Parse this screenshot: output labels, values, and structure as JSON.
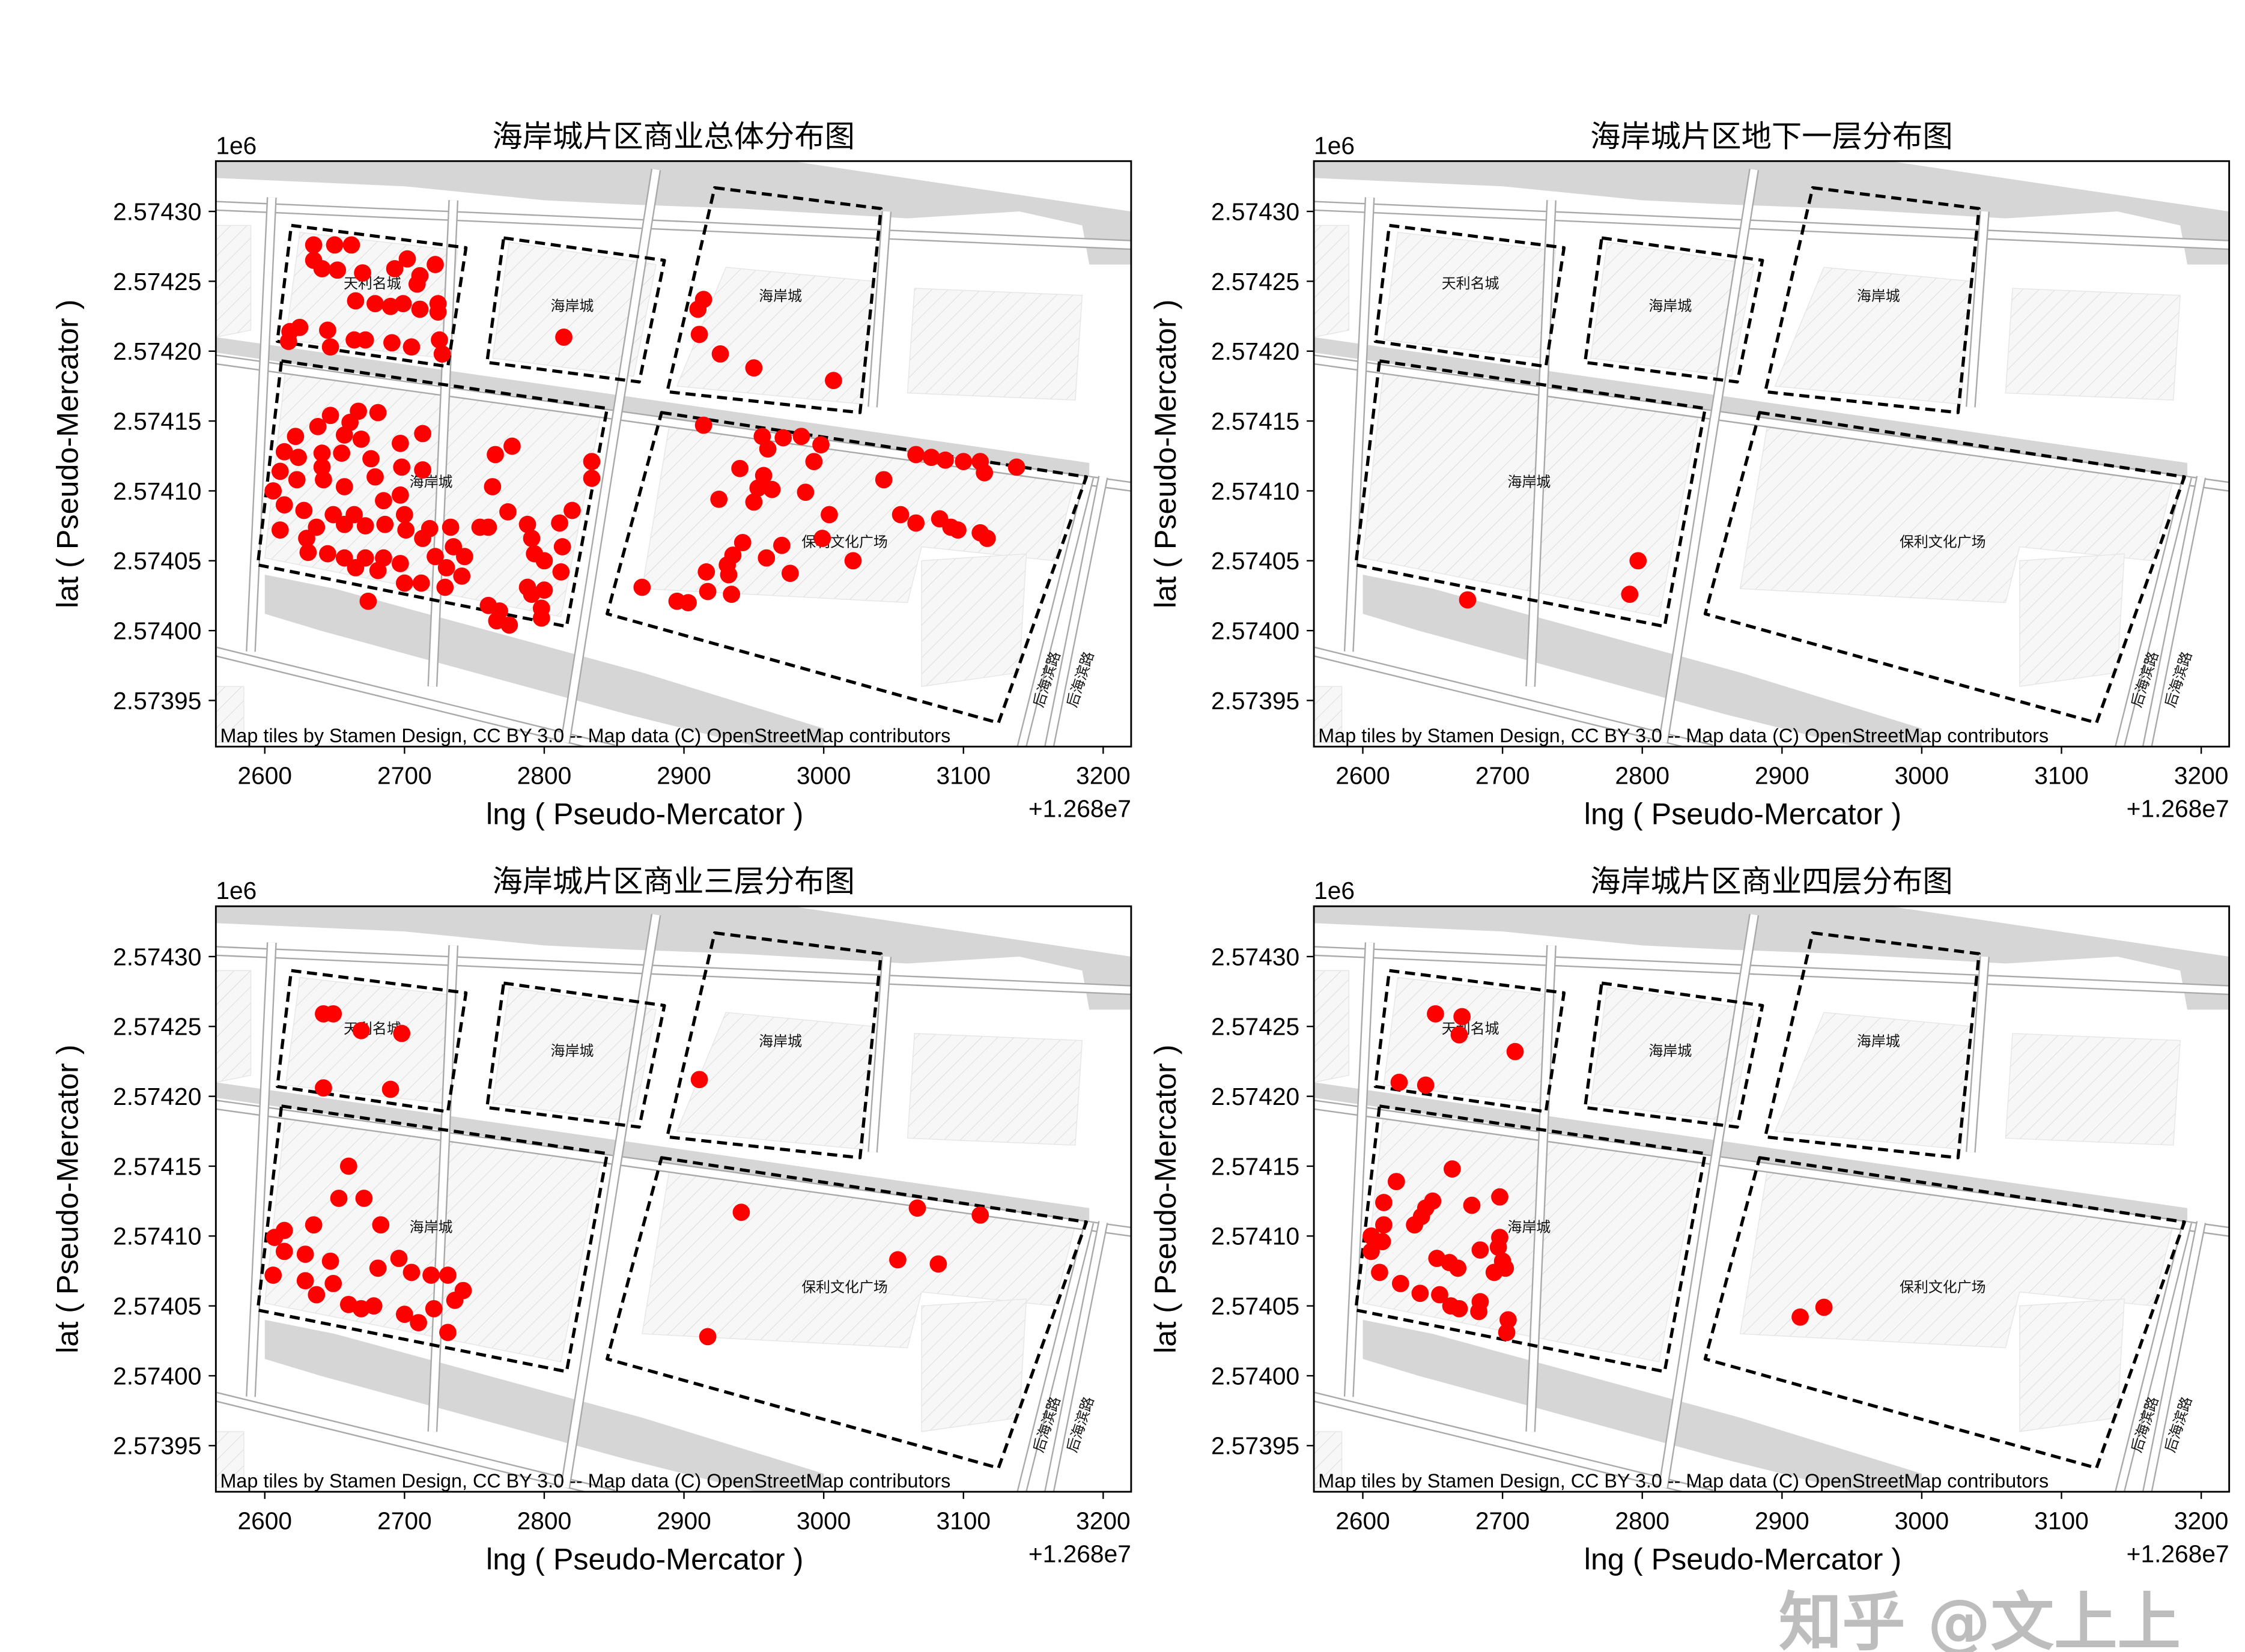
{
  "figure": {
    "watermark": "知乎 @文上上",
    "marker_color": "#ff0000"
  },
  "basemap": {
    "attribution": "Map tiles by Stamen Design, CC BY 3.0 -- Map data (C) OpenStreetMap contributors",
    "labels": [
      "天利名城",
      "海岸城",
      "海岸城",
      "海岸城",
      "保利文化广场",
      "后海滨路",
      "后海滨路"
    ],
    "boundary_style": "black dashed"
  },
  "chart_data": [
    {
      "type": "scatter",
      "title": "海岸城片区商业总体分布图",
      "xlabel": "lng ( Pseudo-Mercator )",
      "ylabel": "lat ( Pseudo-Mercator )",
      "x_offset_label": "+1.268e7",
      "y_multiplier_label": "1e6",
      "xlim": [
        2565,
        3220
      ],
      "ylim": [
        2.573917,
        2.574336
      ],
      "xticks": [
        "2600",
        "2700",
        "2800",
        "2900",
        "3000",
        "3100",
        "3200"
      ],
      "yticks": [
        "2.57395",
        "2.57400",
        "2.57405",
        "2.57410",
        "2.57415",
        "2.57420",
        "2.57425",
        "2.57430"
      ],
      "grid": false,
      "points": [
        [
          2635,
          2.574276
        ],
        [
          2650,
          2.574276
        ],
        [
          2662,
          2.574276
        ],
        [
          2635,
          2.574265
        ],
        [
          2641,
          2.574259
        ],
        [
          2652,
          2.574258
        ],
        [
          2670,
          2.574256
        ],
        [
          2693,
          2.574259
        ],
        [
          2702,
          2.574266
        ],
        [
          2722,
          2.574262
        ],
        [
          2711,
          2.574254
        ],
        [
          2709,
          2.574248
        ],
        [
          2665,
          2.574236
        ],
        [
          2679,
          2.574234
        ],
        [
          2690,
          2.574232
        ],
        [
          2699,
          2.574234
        ],
        [
          2711,
          2.57423
        ],
        [
          2724,
          2.574234
        ],
        [
          2724,
          2.574228
        ],
        [
          2618,
          2.574214
        ],
        [
          2625,
          2.574217
        ],
        [
          2645,
          2.574215
        ],
        [
          2647,
          2.574203
        ],
        [
          2664,
          2.574208
        ],
        [
          2672,
          2.574208
        ],
        [
          2691,
          2.574206
        ],
        [
          2705,
          2.574203
        ],
        [
          2725,
          2.574208
        ],
        [
          2727,
          2.574198
        ],
        [
          2617,
          2.574207
        ],
        [
          2814,
          2.57421
        ],
        [
          2914,
          2.574237
        ],
        [
          2910,
          2.57423
        ],
        [
          2911,
          2.574212
        ],
        [
          2926,
          2.574198
        ],
        [
          2950,
          2.574188
        ],
        [
          3007,
          2.574179
        ],
        [
          2647,
          2.574154
        ],
        [
          2667,
          2.574157
        ],
        [
          2681,
          2.574156
        ],
        [
          2661,
          2.574149
        ],
        [
          2638,
          2.574146
        ],
        [
          2657,
          2.57414
        ],
        [
          2622,
          2.574139
        ],
        [
          2614,
          2.574128
        ],
        [
          2624,
          2.574124
        ],
        [
          2641,
          2.574127
        ],
        [
          2655,
          2.574127
        ],
        [
          2669,
          2.574137
        ],
        [
          2697,
          2.574134
        ],
        [
          2713,
          2.574141
        ],
        [
          2676,
          2.574123
        ],
        [
          2698,
          2.574117
        ],
        [
          2713,
          2.574115
        ],
        [
          2611,
          2.574114
        ],
        [
          2641,
          2.574117
        ],
        [
          2623,
          2.574108
        ],
        [
          2642,
          2.574108
        ],
        [
          2657,
          2.574103
        ],
        [
          2679,
          2.57411
        ],
        [
          2606,
          2.5741
        ],
        [
          2614,
          2.57409
        ],
        [
          2628,
          2.574086
        ],
        [
          2649,
          2.574083
        ],
        [
          2664,
          2.574083
        ],
        [
          2685,
          2.574093
        ],
        [
          2697,
          2.574097
        ],
        [
          2700,
          2.574083
        ],
        [
          2611,
          2.574072
        ],
        [
          2637,
          2.574074
        ],
        [
          2657,
          2.574076
        ],
        [
          2672,
          2.574075
        ],
        [
          2686,
          2.574076
        ],
        [
          2701,
          2.574072
        ],
        [
          2718,
          2.574073
        ],
        [
          2733,
          2.574074
        ],
        [
          2713,
          2.574066
        ],
        [
          2630,
          2.574066
        ],
        [
          2631,
          2.574056
        ],
        [
          2645,
          2.574055
        ],
        [
          2657,
          2.574052
        ],
        [
          2672,
          2.574052
        ],
        [
          2685,
          2.574052
        ],
        [
          2697,
          2.574048
        ],
        [
          2665,
          2.574045
        ],
        [
          2681,
          2.574043
        ],
        [
          2700,
          2.574034
        ],
        [
          2712,
          2.574034
        ],
        [
          2722,
          2.574053
        ],
        [
          2730,
          2.574045
        ],
        [
          2735,
          2.57406
        ],
        [
          2743,
          2.574053
        ],
        [
          2729,
          2.574031
        ],
        [
          2741,
          2.574039
        ],
        [
          2674,
          2.574021
        ],
        [
          2754,
          2.574074
        ],
        [
          2760,
          2.574074
        ],
        [
          2774,
          2.574085
        ],
        [
          2763,
          2.574103
        ],
        [
          2765,
          2.574126
        ],
        [
          2777,
          2.574132
        ],
        [
          2788,
          2.574076
        ],
        [
          2791,
          2.574066
        ],
        [
          2793,
          2.574055
        ],
        [
          2800,
          2.57405
        ],
        [
          2813,
          2.57406
        ],
        [
          2811,
          2.574077
        ],
        [
          2820,
          2.574086
        ],
        [
          2834,
          2.574121
        ],
        [
          2834,
          2.574109
        ],
        [
          2812,
          2.574042
        ],
        [
          2788,
          2.574031
        ],
        [
          2800,
          2.574029
        ],
        [
          2791,
          2.574026
        ],
        [
          2798,
          2.574016
        ],
        [
          2760,
          2.574018
        ],
        [
          2768,
          2.574014
        ],
        [
          2775,
          2.574004
        ],
        [
          2766,
          2.574007
        ],
        [
          2798,
          2.574009
        ],
        [
          2914,
          2.574147
        ],
        [
          2956,
          2.574139
        ],
        [
          2960,
          2.57413
        ],
        [
          2971,
          2.574138
        ],
        [
          2984,
          2.574139
        ],
        [
          2998,
          2.574133
        ],
        [
          2993,
          2.574121
        ],
        [
          2940,
          2.574116
        ],
        [
          2957,
          2.574111
        ],
        [
          2953,
          2.574102
        ],
        [
          2963,
          2.574101
        ],
        [
          2987,
          2.574099
        ],
        [
          2925,
          2.574094
        ],
        [
          2950,
          2.574092
        ],
        [
          3004,
          2.574083
        ],
        [
          2942,
          2.574063
        ],
        [
          2935,
          2.574054
        ],
        [
          2970,
          2.574061
        ],
        [
          2999,
          2.574066
        ],
        [
          2959,
          2.574052
        ],
        [
          2931,
          2.574047
        ],
        [
          2916,
          2.574042
        ],
        [
          2932,
          2.57404
        ],
        [
          2976,
          2.574041
        ],
        [
          3021,
          2.57405
        ],
        [
          2870,
          2.574031
        ],
        [
          2895,
          2.574021
        ],
        [
          2903,
          2.57402
        ],
        [
          2917,
          2.574028
        ],
        [
          2934,
          2.574026
        ],
        [
          3043,
          2.574108
        ],
        [
          3066,
          2.574126
        ],
        [
          3077,
          2.574124
        ],
        [
          3087,
          2.574122
        ],
        [
          3100,
          2.574121
        ],
        [
          3112,
          2.574121
        ],
        [
          3115,
          2.574113
        ],
        [
          3138,
          2.574117
        ],
        [
          3055,
          2.574083
        ],
        [
          3066,
          2.574077
        ],
        [
          3083,
          2.57408
        ],
        [
          3096,
          2.574072
        ],
        [
          3091,
          2.574074
        ],
        [
          3112,
          2.57407
        ],
        [
          3117,
          2.574066
        ]
      ]
    },
    {
      "type": "scatter",
      "title": "海岸城片区地下一层分布图",
      "xlabel": "lng ( Pseudo-Mercator )",
      "ylabel": "lat ( Pseudo-Mercator )",
      "x_offset_label": "+1.268e7",
      "y_multiplier_label": "1e6",
      "xlim": [
        2565,
        3220
      ],
      "ylim": [
        2.573917,
        2.574336
      ],
      "xticks": [
        "2600",
        "2700",
        "2800",
        "2900",
        "3000",
        "3100",
        "3200"
      ],
      "yticks": [
        "2.57395",
        "2.57400",
        "2.57405",
        "2.57410",
        "2.57415",
        "2.57420",
        "2.57425",
        "2.57430"
      ],
      "grid": false,
      "points": [
        [
          2675,
          2.574022
        ],
        [
          2797,
          2.57405
        ],
        [
          2791,
          2.574026
        ]
      ]
    },
    {
      "type": "scatter",
      "title": "海岸城片区商业三层分布图",
      "xlabel": "lng ( Pseudo-Mercator )",
      "ylabel": "lat ( Pseudo-Mercator )",
      "x_offset_label": "+1.268e7",
      "y_multiplier_label": "1e6",
      "xlim": [
        2565,
        3220
      ],
      "ylim": [
        2.573917,
        2.574336
      ],
      "xticks": [
        "2600",
        "2700",
        "2800",
        "2900",
        "3000",
        "3100",
        "3200"
      ],
      "yticks": [
        "2.57395",
        "2.57400",
        "2.57405",
        "2.57410",
        "2.57415",
        "2.57420",
        "2.57425",
        "2.57430"
      ],
      "grid": false,
      "points": [
        [
          2642,
          2.574259
        ],
        [
          2649,
          2.574259
        ],
        [
          2669,
          2.574247
        ],
        [
          2698,
          2.574245
        ],
        [
          2642,
          2.574206
        ],
        [
          2690,
          2.574205
        ],
        [
          2911,
          2.574212
        ],
        [
          2660,
          2.57415
        ],
        [
          2653,
          2.574127
        ],
        [
          2635,
          2.574108
        ],
        [
          2607,
          2.574099
        ],
        [
          2614,
          2.574104
        ],
        [
          2614,
          2.574089
        ],
        [
          2671,
          2.574127
        ],
        [
          2683,
          2.574108
        ],
        [
          2606,
          2.574072
        ],
        [
          2629,
          2.574087
        ],
        [
          2647,
          2.574082
        ],
        [
          2629,
          2.574068
        ],
        [
          2649,
          2.574066
        ],
        [
          2681,
          2.574077
        ],
        [
          2696,
          2.574084
        ],
        [
          2705,
          2.574074
        ],
        [
          2719,
          2.574072
        ],
        [
          2731,
          2.574072
        ],
        [
          2742,
          2.574061
        ],
        [
          2736,
          2.574054
        ],
        [
          2721,
          2.574048
        ],
        [
          2700,
          2.574044
        ],
        [
          2710,
          2.574038
        ],
        [
          2731,
          2.574031
        ],
        [
          2678,
          2.57405
        ],
        [
          2660,
          2.574051
        ],
        [
          2669,
          2.574048
        ],
        [
          2637,
          2.574058
        ],
        [
          2941,
          2.574117
        ],
        [
          3067,
          2.57412
        ],
        [
          3112,
          2.574115
        ],
        [
          3053,
          2.574083
        ],
        [
          3082,
          2.57408
        ],
        [
          2917,
          2.574028
        ]
      ]
    },
    {
      "type": "scatter",
      "title": "海岸城片区商业四层分布图",
      "xlabel": "lng ( Pseudo-Mercator )",
      "ylabel": "lat ( Pseudo-Mercator )",
      "x_offset_label": "+1.268e7",
      "y_multiplier_label": "1e6",
      "xlim": [
        2565,
        3220
      ],
      "ylim": [
        2.573917,
        2.574336
      ],
      "xticks": [
        "2600",
        "2700",
        "2800",
        "2900",
        "3000",
        "3100",
        "3200"
      ],
      "yticks": [
        "2.57395",
        "2.57400",
        "2.57405",
        "2.57410",
        "2.57415",
        "2.57420",
        "2.57425",
        "2.57430"
      ],
      "grid": false,
      "points": [
        [
          2652,
          2.574259
        ],
        [
          2671,
          2.574257
        ],
        [
          2669,
          2.574244
        ],
        [
          2709,
          2.574232
        ],
        [
          2626,
          2.57421
        ],
        [
          2645,
          2.574208
        ],
        [
          2664,
          2.574148
        ],
        [
          2624,
          2.574139
        ],
        [
          2615,
          2.574124
        ],
        [
          2650,
          2.574125
        ],
        [
          2645,
          2.57412
        ],
        [
          2642,
          2.574114
        ],
        [
          2637,
          2.574108
        ],
        [
          2678,
          2.574122
        ],
        [
          2698,
          2.574128
        ],
        [
          2615,
          2.574108
        ],
        [
          2606,
          2.5741
        ],
        [
          2614,
          2.574096
        ],
        [
          2606,
          2.574089
        ],
        [
          2698,
          2.574099
        ],
        [
          2697,
          2.574092
        ],
        [
          2684,
          2.57409
        ],
        [
          2653,
          2.574084
        ],
        [
          2662,
          2.574081
        ],
        [
          2668,
          2.574077
        ],
        [
          2700,
          2.574082
        ],
        [
          2702,
          2.574077
        ],
        [
          2694,
          2.574074
        ],
        [
          2612,
          2.574074
        ],
        [
          2627,
          2.574066
        ],
        [
          2641,
          2.574059
        ],
        [
          2655,
          2.574058
        ],
        [
          2663,
          2.57405
        ],
        [
          2669,
          2.574048
        ],
        [
          2684,
          2.574053
        ],
        [
          2683,
          2.574046
        ],
        [
          2704,
          2.57404
        ],
        [
          2703,
          2.574031
        ],
        [
          2913,
          2.574042
        ],
        [
          2930,
          2.574049
        ]
      ]
    }
  ]
}
